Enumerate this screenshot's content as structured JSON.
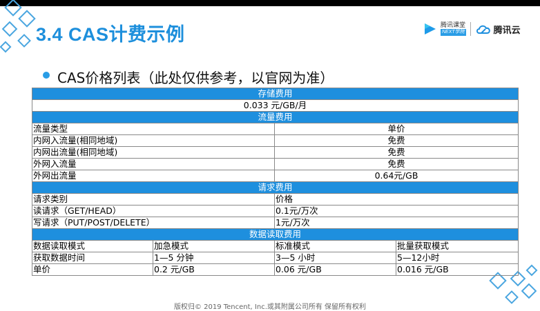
{
  "slide": {
    "title": "3.4 CAS计费示例",
    "subtitle": "CAS价格列表（此处仅供参考，以官网为准）",
    "footer": "版权归© 2019 Tencent, Inc.或其附属公司所有 保留所有权利"
  },
  "logos": {
    "tencent_class_cn": "腾讯课堂",
    "tencent_class_en": "NEXT学院",
    "tencent_cloud": "腾讯云",
    "accent_color": "#1e8fde"
  },
  "table": {
    "storage": {
      "header": "存储费用",
      "value": "0.033 元/GB/月"
    },
    "traffic": {
      "header": "流量费用",
      "col_type": "流量类型",
      "col_price": "单价",
      "rows": [
        {
          "type": "内网入流量(相同地域)",
          "price": "免费"
        },
        {
          "type": "内网出流量(相同地域)",
          "price": "免费"
        },
        {
          "type": "外网入流量",
          "price": "免费"
        },
        {
          "type": "外网出流量",
          "price": "0.64元/GB"
        }
      ]
    },
    "request": {
      "header": "请求费用",
      "col_type": "请求类别",
      "col_price": "价格",
      "rows": [
        {
          "type": "读请求（GET/HEAD）",
          "price": "0.1元/万次"
        },
        {
          "type": "写请求（PUT/POST/DELETE）",
          "price": "1元/万次"
        }
      ]
    },
    "retrieval": {
      "header": "数据读取费用",
      "columns": [
        "数据读取模式",
        "加急模式",
        "标准模式",
        "批量获取模式"
      ],
      "rows": [
        [
          "获取数据时间",
          "1—5 分钟",
          "3—5 小时",
          "5—12小时"
        ],
        [
          "单价",
          "0.2 元/GB",
          "0.06 元/GB",
          "0.016 元/GB"
        ]
      ]
    }
  }
}
